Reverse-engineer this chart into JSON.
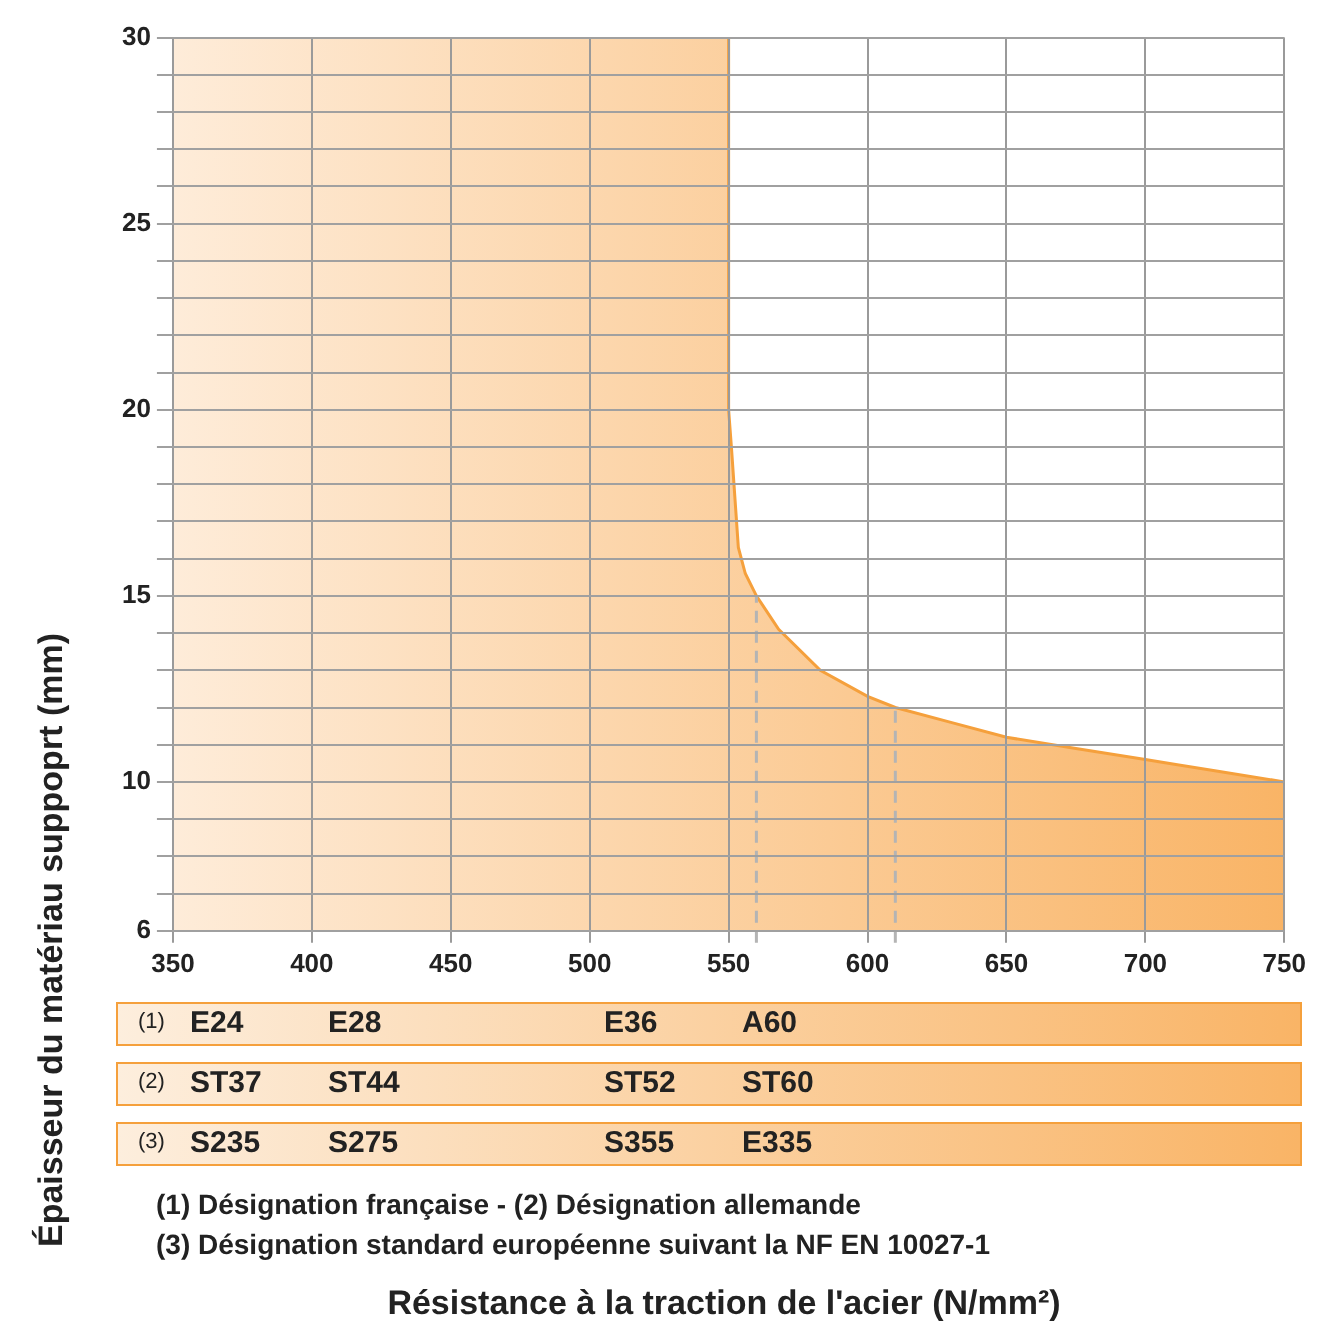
{
  "chart_data": {
    "type": "area",
    "ylabel": "Épaisseur du matériau suppoprt (mm)",
    "series": [
      {
        "color": "#f9b466",
        "x": [
          350,
          550,
          550,
          551,
          553.5,
          556,
          560,
          568,
          583,
          600,
          610,
          630,
          650,
          675,
          700,
          725,
          750
        ],
        "values": [
          30,
          30,
          20,
          19,
          16.3,
          15.6,
          15,
          14.1,
          13,
          12.3,
          12,
          11.6,
          11.2,
          10.9,
          10.6,
          10.3,
          10
        ]
      }
    ],
    "xlim": [
      350,
      750
    ],
    "xticks": [
      350,
      400,
      450,
      500,
      550,
      600,
      650,
      700,
      750
    ],
    "ylim": [
      6,
      30
    ],
    "yticks": [
      6,
      {
        "value": 7,
        "label": null
      },
      {
        "value": 8,
        "label": null
      },
      {
        "value": 9,
        "label": null
      },
      10,
      {
        "value": 11,
        "label": null
      },
      {
        "value": 12,
        "label": null
      },
      {
        "value": 13,
        "label": null
      },
      {
        "value": 14,
        "label": null
      },
      15,
      {
        "value": 16,
        "label": null
      },
      {
        "value": 17,
        "label": null
      },
      {
        "value": 18,
        "label": null
      },
      {
        "value": 19,
        "label": null
      },
      20,
      {
        "value": 21,
        "label": null
      },
      {
        "value": 22,
        "label": null
      },
      {
        "value": 23,
        "label": null
      },
      {
        "value": 24,
        "label": null
      },
      25,
      {
        "value": 26,
        "label": null
      },
      {
        "value": 27,
        "label": null
      },
      {
        "value": 28,
        "label": null
      },
      {
        "value": 29,
        "label": null
      },
      30
    ],
    "grid": true,
    "ref_lines": [
      {
        "axis": "x",
        "value": 560,
        "color": "#b4b4b4",
        "line_style": "dashed"
      },
      {
        "axis": "x",
        "value": 610,
        "color": "#b4b4b4",
        "line_style": "dashed"
      }
    ],
    "annotations": [
      "(1)",
      "E24",
      "E28",
      "E36",
      "A60",
      "(2)",
      "ST37",
      "ST44",
      "ST52",
      "ST60",
      "(3)",
      "S235",
      "S275",
      "S355",
      "E335",
      "(1) Désignation française - (2) Désignation allemande",
      "(3) Désignation standard européenne suivant la NF EN 10027-1",
      "Résistance à la traction de l'acier (N/mm²)"
    ]
  }
}
